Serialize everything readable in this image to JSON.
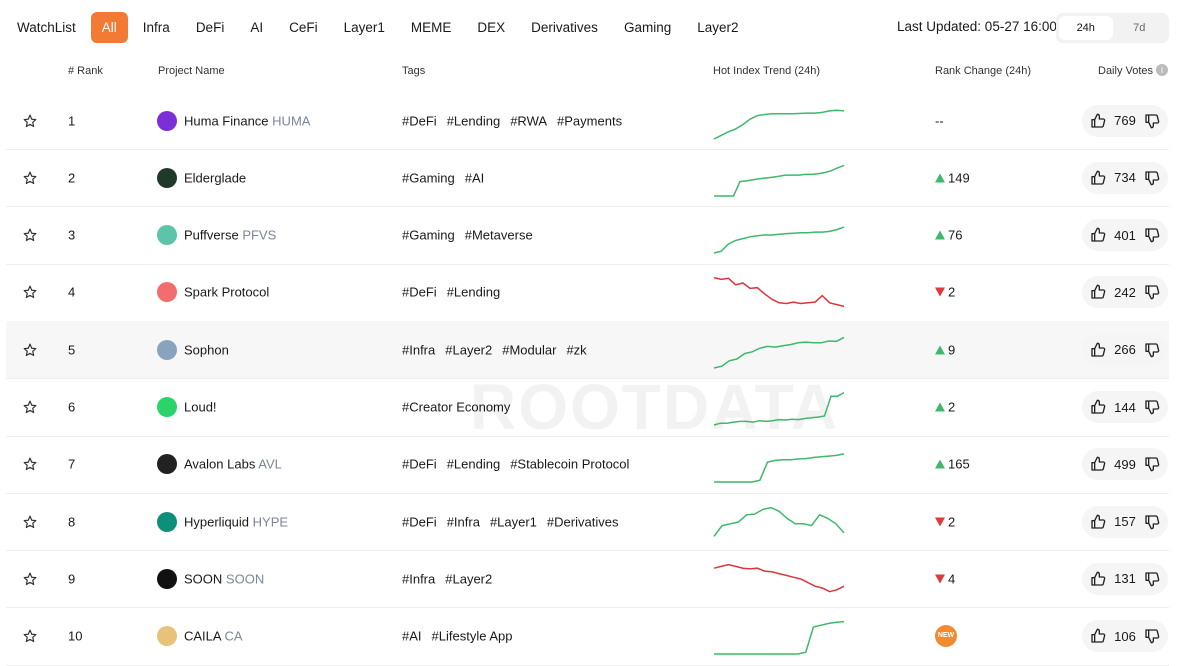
{
  "tabs": [
    "WatchList",
    "All",
    "Infra",
    "DeFi",
    "AI",
    "CeFi",
    "Layer1",
    "MEME",
    "DEX",
    "Derivatives",
    "Gaming",
    "Layer2"
  ],
  "active_tab_index": 1,
  "last_updated": "Last Updated: 05-27 16:00",
  "periods": [
    "24h",
    "7d"
  ],
  "active_period_index": 0,
  "watermark": "ROOTDATA",
  "trend_ylim": [
    0,
    100
  ],
  "table": {
    "headers": [
      "# Rank",
      "Project Name",
      "Tags",
      "Hot Index Trend (24h)",
      "Rank Change (24h)",
      "Daily Votes"
    ],
    "rows": [
      {
        "rank": "1",
        "name": "Huma Finance",
        "symbol": "HUMA",
        "icon_color": "#7b2fd6",
        "tags": [
          "#DeFi",
          "#Lending",
          "#RWA",
          "#Payments"
        ],
        "trend_color": "#3cb96a",
        "trend": [
          0,
          10,
          20,
          28,
          40,
          55,
          65,
          68,
          70,
          70,
          70,
          70,
          71,
          72,
          72,
          74,
          78,
          80,
          78
        ],
        "rank_change_label": "--",
        "votes": "769"
      },
      {
        "rank": "2",
        "name": "Elderglade",
        "icon_color": "#1f3a2b",
        "tags": [
          "#Gaming",
          "#AI"
        ],
        "trend_color": "#3cb96a",
        "trend": [
          0,
          0,
          0,
          0,
          40,
          42,
          45,
          48,
          50,
          52,
          55,
          58,
          58,
          58,
          60,
          60,
          62,
          65,
          70,
          78,
          85
        ],
        "rank_change_direction": "up",
        "rank_change": "149",
        "votes": "734"
      },
      {
        "rank": "3",
        "name": "Puffverse",
        "symbol": "PFVS",
        "icon_color": "#5cc4a8",
        "tags": [
          "#Gaming",
          "#Metaverse"
        ],
        "trend_color": "#3cb96a",
        "trend": [
          0,
          5,
          25,
          35,
          40,
          45,
          48,
          50,
          50,
          52,
          54,
          55,
          56,
          56,
          58,
          58,
          60,
          65,
          72
        ],
        "rank_change_direction": "up",
        "rank_change": "76",
        "votes": "401"
      },
      {
        "rank": "4",
        "name": "Spark Protocol",
        "icon_color": "#f26d6d",
        "tags": [
          "#DeFi",
          "#Lending"
        ],
        "trend_color": "#d9373b",
        "trend": [
          90,
          85,
          88,
          70,
          75,
          60,
          62,
          45,
          30,
          20,
          18,
          22,
          18,
          20,
          22,
          40,
          20,
          15,
          10
        ],
        "rank_change_direction": "down",
        "rank_change": "2",
        "votes": "242"
      },
      {
        "rank": "5",
        "name": "Sophon",
        "icon_color": "#8aa3bd",
        "tags": [
          "#Infra",
          "#Layer2",
          "#Modular",
          "#zk"
        ],
        "trend_color": "#3cb96a",
        "trend": [
          0,
          5,
          20,
          25,
          40,
          45,
          55,
          60,
          58,
          62,
          65,
          70,
          72,
          70,
          70,
          75,
          74,
          85
        ],
        "rank_change_direction": "up",
        "rank_change": "9",
        "votes": "266"
      },
      {
        "rank": "6",
        "name": "Loud!",
        "icon_color": "#2bd46a",
        "tags": [
          "#Creator Economy"
        ],
        "trend_color": "#3cb96a",
        "trend": [
          0,
          5,
          5,
          8,
          10,
          10,
          8,
          12,
          10,
          12,
          15,
          14,
          16,
          15,
          18,
          20,
          22,
          25,
          80,
          80,
          90
        ],
        "rank_change_direction": "up",
        "rank_change": "2",
        "votes": "144"
      },
      {
        "rank": "7",
        "name": "Avalon Labs",
        "symbol": "AVL",
        "icon_color": "#222222",
        "tags": [
          "#DeFi",
          "#Lending",
          "#Stablecoin Protocol"
        ],
        "trend_color": "#3cb96a",
        "trend": [
          0,
          0,
          0,
          0,
          0,
          0,
          5,
          55,
          60,
          62,
          62,
          64,
          65,
          68,
          70,
          72,
          74,
          78
        ],
        "rank_change_direction": "up",
        "rank_change": "165",
        "votes": "499"
      },
      {
        "rank": "8",
        "name": "Hyperliquid",
        "symbol": "HYPE",
        "icon_color": "#0e8f7a",
        "tags": [
          "#DeFi",
          "#Infra",
          "#Layer1",
          "#Derivatives"
        ],
        "trend_color": "#3cb96a",
        "trend": [
          10,
          40,
          45,
          50,
          70,
          72,
          85,
          90,
          80,
          60,
          45,
          45,
          40,
          70,
          60,
          45,
          20
        ],
        "rank_change_direction": "down",
        "rank_change": "2",
        "votes": "157"
      },
      {
        "rank": "9",
        "name": "SOON",
        "symbol": "SOON",
        "icon_color": "#111111",
        "tags": [
          "#Infra",
          "#Layer2"
        ],
        "trend_color": "#d9373b",
        "trend": [
          80,
          85,
          90,
          85,
          80,
          78,
          80,
          72,
          70,
          65,
          60,
          55,
          50,
          40,
          30,
          25,
          15,
          20,
          30
        ],
        "rank_change_direction": "down",
        "rank_change": "4",
        "votes": "131"
      },
      {
        "rank": "10",
        "name": "CAILA",
        "symbol": "CA",
        "icon_color": "#e8c27a",
        "tags": [
          "#AI",
          "#Lifestyle App"
        ],
        "trend_color": "#3cb96a",
        "trend": [
          0,
          0,
          0,
          0,
          0,
          0,
          0,
          0,
          0,
          0,
          0,
          0,
          5,
          75,
          80,
          85,
          88,
          90
        ],
        "badge": "NEW",
        "votes": "106"
      }
    ]
  }
}
